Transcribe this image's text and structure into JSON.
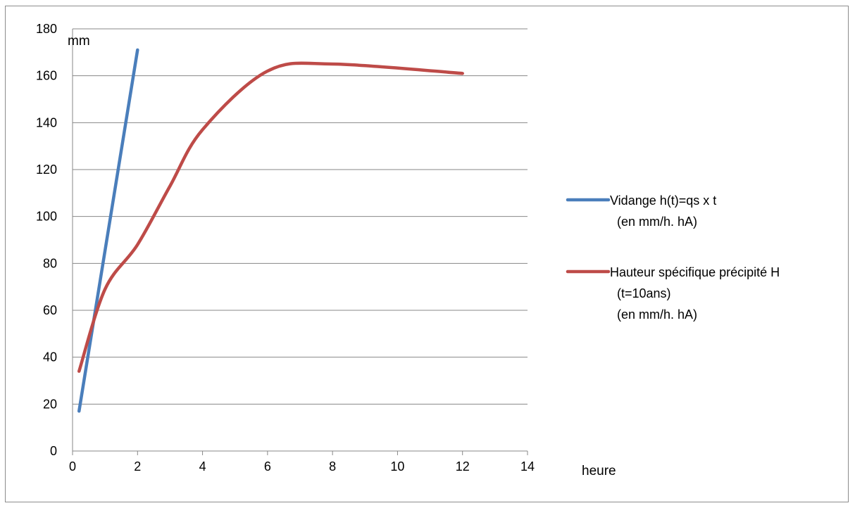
{
  "chart_data": {
    "type": "line",
    "xlabel": "heure",
    "ylabel": "mm",
    "xlim": [
      0,
      14
    ],
    "ylim": [
      0,
      180
    ],
    "xticks": [
      0,
      2,
      4,
      6,
      8,
      10,
      12,
      14
    ],
    "yticks": [
      0,
      20,
      40,
      60,
      80,
      100,
      120,
      140,
      160,
      180
    ],
    "grid": "horizontal",
    "legend_position": "right",
    "series": [
      {
        "name": "Vidange  h(t)=qs x t",
        "name_lines": [
          "Vidange  h(t)=qs x t",
          "(en mm/h. hA)"
        ],
        "color": "#4a7ebb",
        "smooth": false,
        "x": [
          0.2,
          2
        ],
        "y": [
          17,
          171
        ]
      },
      {
        "name": "Hauteur spécifique précipité H",
        "name_lines": [
          "Hauteur spécifique précipité H",
          "(t=10ans)",
          "(en mm/h. hA)"
        ],
        "color": "#be4b48",
        "smooth": true,
        "x": [
          0.2,
          1,
          2,
          3,
          4,
          6,
          8,
          12
        ],
        "y": [
          34,
          69,
          88,
          113,
          137,
          162,
          165,
          161
        ]
      }
    ]
  }
}
